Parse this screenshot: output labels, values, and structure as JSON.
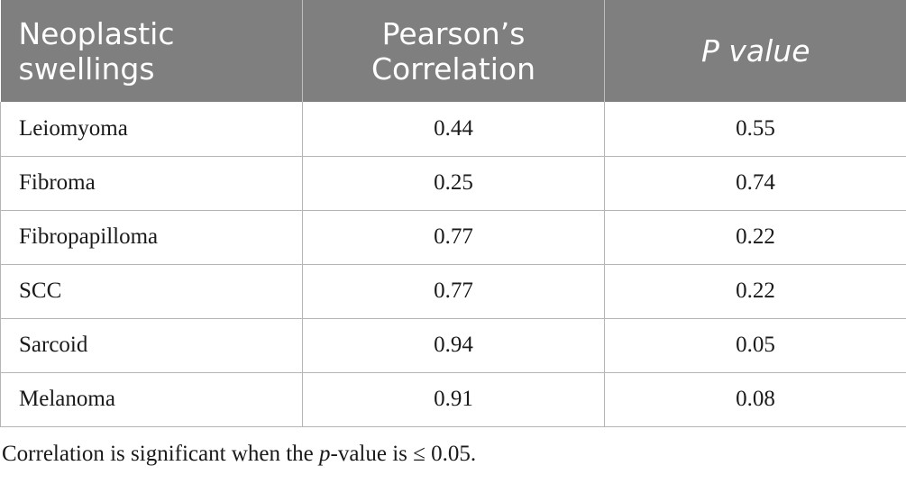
{
  "table": {
    "headers": [
      {
        "line1": "Neoplastic",
        "line2": "swellings"
      },
      {
        "line1": "Pearson’s",
        "line2": "Correlation"
      },
      {
        "line1": "P value",
        "line2": ""
      }
    ],
    "rows": [
      {
        "swelling": "Leiomyoma",
        "correlation": "0.44",
        "p_value": "0.55"
      },
      {
        "swelling": "Fibroma",
        "correlation": "0.25",
        "p_value": "0.74"
      },
      {
        "swelling": "Fibropapilloma",
        "correlation": "0.77",
        "p_value": "0.22"
      },
      {
        "swelling": "SCC",
        "correlation": "0.77",
        "p_value": "0.22"
      },
      {
        "swelling": "Sarcoid",
        "correlation": "0.94",
        "p_value": "0.05"
      },
      {
        "swelling": "Melanoma",
        "correlation": "0.91",
        "p_value": "0.08"
      }
    ]
  },
  "footnote": {
    "prefix": "Correlation is significant when the ",
    "italic": "p",
    "suffix": "-value is ≤ 0.05."
  }
}
